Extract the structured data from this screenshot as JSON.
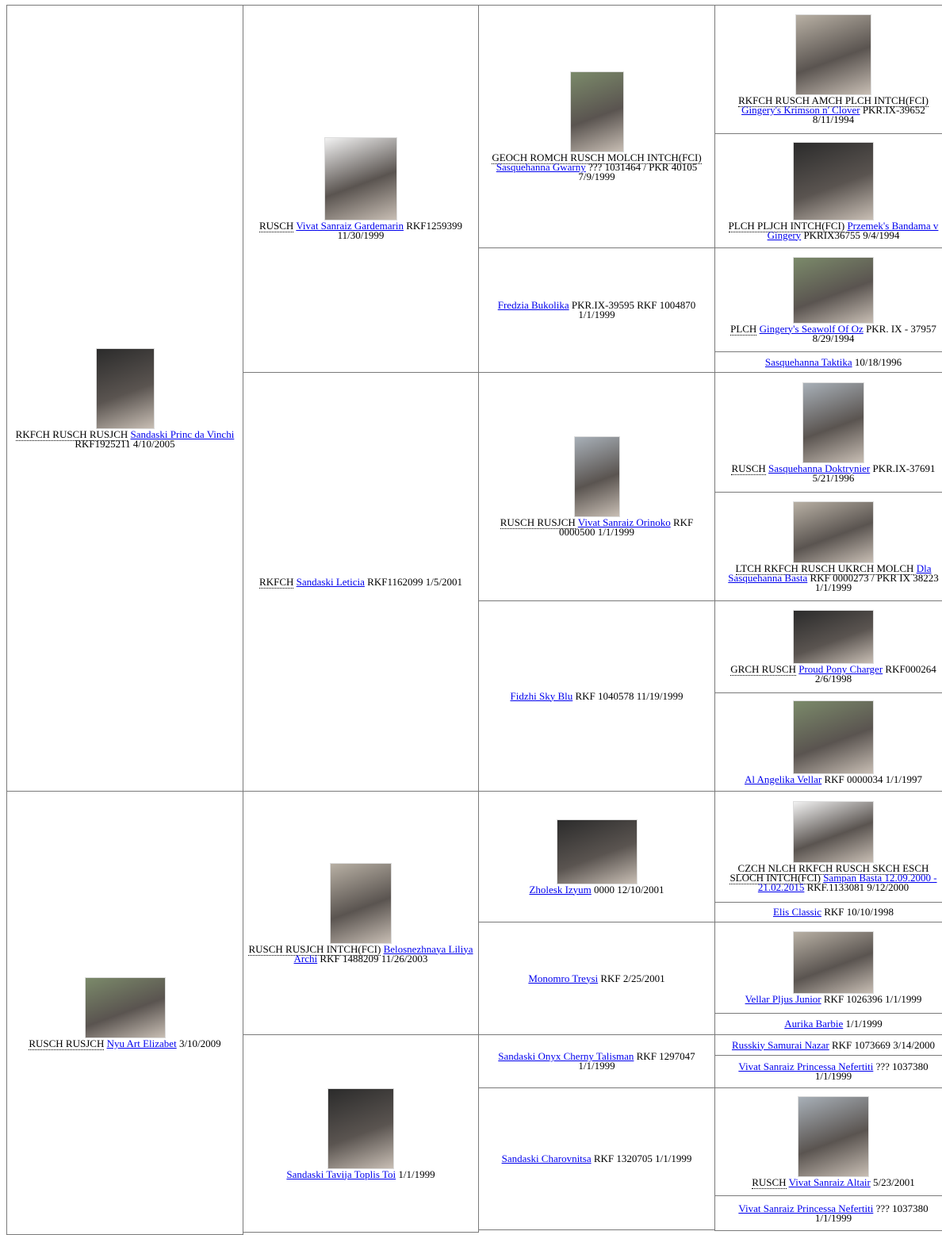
{
  "pedigree": [
    {
      "titles": "RKFCH RUSCH RUSJCH",
      "name": "Sandaski Princ da Vinchi",
      "details": "RKF1925211 4/10/2005"
    },
    {
      "titles": "RUSCH RUSJCH",
      "name": "Nyu Art Elizabet",
      "details": "3/10/2009"
    },
    {
      "titles": "RUSCH",
      "name": "Vivat Sanraiz Gardemarin",
      "details": "RKF1259399 11/30/1999"
    },
    {
      "titles": "RKFCH",
      "name": "Sandaski Leticia",
      "details": "RKF1162099 1/5/2001"
    },
    {
      "titles": "RUSCH RUSJCH INTCH(FCI)",
      "name": "Belosnezhnaya Liliya Archi",
      "details": "RKF 1488209 11/26/2003"
    },
    {
      "name": "Sandaski Tavija Toplis Toi",
      "details": "1/1/1999"
    },
    {
      "titles": "GEOCH ROMCH RUSCH MOLCH INTCH(FCI)",
      "name": "Sasquehanna Gwarny",
      "details": "??? 1031464 / PKR 40105 7/9/1999"
    },
    {
      "name": "Fredzia Bukolika",
      "details": "PKR.IX-39595 RKF 1004870 1/1/1999"
    },
    {
      "titles": "RUSCH RUSJCH",
      "name": "Vivat Sanraiz Orinoko",
      "details": "RKF 0000500 1/1/1999"
    },
    {
      "name": "Fidzhi Sky Blu",
      "details": "RKF 1040578 11/19/1999"
    },
    {
      "name": "Zholesk Izyum",
      "details": "0000 12/10/2001"
    },
    {
      "name": "Monomro Treysi",
      "details": "RKF 2/25/2001"
    },
    {
      "name": "Sandaski Onyx Cherny Talisman",
      "details": "RKF 1297047 1/1/1999"
    },
    {
      "name": "Sandaski Charovnitsa",
      "details": "RKF 1320705 1/1/1999"
    },
    {
      "titles": "RKFCH RUSCH AMCH PLCH INTCH(FCI)",
      "name": "Gingery's Krimson n' Clover",
      "details": "PKR.IX-39652 8/11/1994"
    },
    {
      "titles": "PLCH PLJCH INTCH(FCI)",
      "name": "Przemek's Bandama v Gingery",
      "details": "PKRIX36755 9/4/1994"
    },
    {
      "titles": "PLCH",
      "name": "Gingery's Seawolf Of Oz",
      "details": "PKR. IX - 37957 8/29/1994"
    },
    {
      "name": "Sasquehanna Taktika",
      "details": "10/18/1996"
    },
    {
      "titles": "RUSCH",
      "name": "Sasquehanna Doktrynier",
      "details": "PKR.IX-37691 5/21/1996"
    },
    {
      "titles": "LTCH RKFCH RUSCH UKRCH MOLCH",
      "name": "Dla Sasquehanna Basta",
      "details": "RKF 0000273 / PKR IX 38223 1/1/1999"
    },
    {
      "titles": "GRCH RUSCH",
      "name": "Proud Pony Charger",
      "details": "RKF000264 2/6/1998"
    },
    {
      "name": "Al Angelika Vellar",
      "details": "RKF 0000034 1/1/1997"
    },
    {
      "titles": "CZCH NLCH RKFCH RUSCH SKCH ESCH SLOCH INTCH(FCI)",
      "name": "Sampan Basta 12.09.2000 - 21.02.2015",
      "details": "RKF.1133081 9/12/2000"
    },
    {
      "name": "Elis Classic",
      "details": "RKF 10/10/1998"
    },
    {
      "name": "Vellar Pljus Junior",
      "details": "RKF 1026396 1/1/1999"
    },
    {
      "name": "Aurika Barbie",
      "details": "1/1/1999"
    },
    {
      "name": "Russkiy Samurai Nazar",
      "details": "RKF 1073669 3/14/2000"
    },
    {
      "name": "Vivat Sanraiz Princessa Nefertiti",
      "details": "??? 1037380 1/1/1999"
    },
    {
      "titles": "RUSCH",
      "name": "Vivat Sanraiz Altair",
      "details": "5/23/2001"
    },
    {
      "name": "Vivat Sanraiz Princessa Nefertiti",
      "details": "??? 1037380 1/1/1999"
    }
  ]
}
